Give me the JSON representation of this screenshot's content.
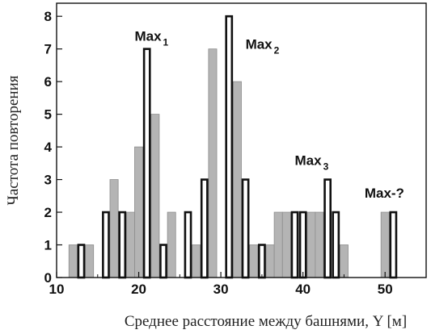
{
  "chart_data": {
    "type": "bar",
    "xlabel": "Среднее расстояние между башнями, Y [м]",
    "ylabel": "Частота повторения",
    "xlim": [
      10,
      55
    ],
    "ylim": [
      0,
      8.4
    ],
    "x_ticks": [
      10,
      20,
      30,
      40,
      50
    ],
    "y_ticks": [
      0,
      1,
      2,
      3,
      4,
      5,
      6,
      7,
      8
    ],
    "grid": false,
    "series": [
      {
        "style": "filled-gray",
        "bars": [
          {
            "x": 12,
            "value": 1
          },
          {
            "x": 14,
            "value": 1
          },
          {
            "x": 17,
            "value": 3
          },
          {
            "x": 19,
            "value": 2
          },
          {
            "x": 20,
            "value": 4
          },
          {
            "x": 22,
            "value": 5
          },
          {
            "x": 24,
            "value": 2
          },
          {
            "x": 27,
            "value": 1
          },
          {
            "x": 29,
            "value": 7
          },
          {
            "x": 32,
            "value": 6
          },
          {
            "x": 34,
            "value": 1
          },
          {
            "x": 36,
            "value": 1
          },
          {
            "x": 37,
            "value": 2
          },
          {
            "x": 38,
            "value": 2
          },
          {
            "x": 41,
            "value": 2
          },
          {
            "x": 42,
            "value": 2
          },
          {
            "x": 45,
            "value": 1
          },
          {
            "x": 50,
            "value": 2
          }
        ]
      },
      {
        "style": "outline",
        "bars": [
          {
            "x": 13,
            "value": 1
          },
          {
            "x": 16,
            "value": 2
          },
          {
            "x": 18,
            "value": 2
          },
          {
            "x": 21,
            "value": 7
          },
          {
            "x": 23,
            "value": 1
          },
          {
            "x": 26,
            "value": 2
          },
          {
            "x": 28,
            "value": 3
          },
          {
            "x": 31,
            "value": 8
          },
          {
            "x": 33,
            "value": 3
          },
          {
            "x": 35,
            "value": 1
          },
          {
            "x": 39,
            "value": 2
          },
          {
            "x": 40,
            "value": 2
          },
          {
            "x": 43,
            "value": 3
          },
          {
            "x": 44,
            "value": 2
          },
          {
            "x": 51,
            "value": 2
          }
        ]
      }
    ],
    "annotations": [
      {
        "base": "Max",
        "sub": "1",
        "x": 19.5,
        "y": 7.25
      },
      {
        "base": "Max",
        "sub": "2",
        "x": 33,
        "y": 7.0
      },
      {
        "base": "Max",
        "sub": "3",
        "x": 39,
        "y": 3.45
      },
      {
        "base": "Max-?",
        "sub": "",
        "x": 47.5,
        "y": 2.45
      }
    ]
  },
  "colors": {
    "gray_fill": "#b4b4b4",
    "outline_fill": "#ffffff",
    "stroke": "#111111"
  }
}
